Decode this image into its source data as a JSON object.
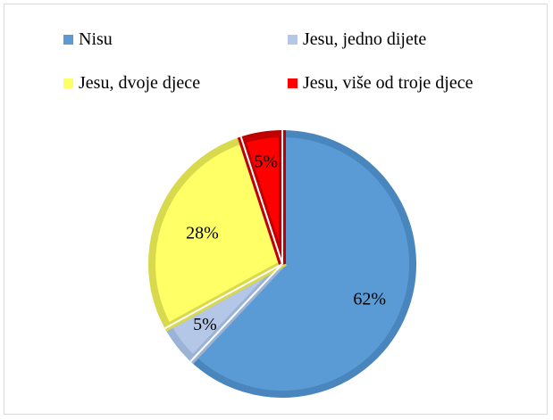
{
  "chart_data": {
    "type": "pie",
    "slices": [
      {
        "name": "Nisu",
        "value": 62,
        "label": "62%",
        "color": "#5B9BD5",
        "edge": "#4A86BE"
      },
      {
        "name": "Jesu, jedno dijete",
        "value": 5,
        "label": "5%",
        "color": "#B4C7E7",
        "edge": "#9BB3D6"
      },
      {
        "name": "Jesu, dvoje djece",
        "value": 28,
        "label": "28%",
        "color": "#FFFF66",
        "edge": "#D9D94E"
      },
      {
        "name": "Jesu, više od troje djece",
        "value": 5,
        "label": "5%",
        "color": "#FF0000",
        "edge": "#C00000"
      }
    ],
    "legend": [
      "Nisu",
      "Jesu, jedno dijete",
      "Jesu, dvoje djece",
      "Jesu, više od troje djece"
    ],
    "legend_position": "top"
  }
}
